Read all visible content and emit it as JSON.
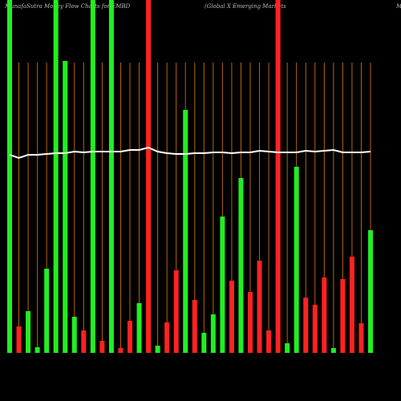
{
  "chart_data": {
    "type": "bar",
    "title": "MunafaSutra  Money Flow  Charts for EMBD",
    "subtitle": "(Global X  Emerging Markets",
    "title_right": "M",
    "categories": [
      null,
      null,
      null,
      null,
      null,
      null,
      null,
      null,
      null,
      null,
      null,
      null,
      null,
      null,
      null,
      null,
      null,
      null,
      null,
      null,
      null,
      null,
      null,
      null,
      null,
      null,
      null,
      null,
      null,
      null,
      null,
      null,
      null,
      null,
      null,
      null,
      null,
      null,
      null,
      null
    ],
    "values": [
      440,
      33,
      52,
      7,
      105,
      440,
      364,
      45,
      28,
      440,
      15,
      440,
      6,
      40,
      62,
      440,
      9,
      38,
      103,
      303,
      66,
      25,
      48,
      170,
      90,
      218,
      76,
      115,
      28,
      440,
      12,
      232,
      69,
      60,
      94,
      6,
      92,
      120,
      37,
      153
    ],
    "colors": [
      "#22ee22",
      "#ff2222",
      "#22ee22",
      "#22ee22",
      "#22ee22",
      "#22ee22",
      "#22ee22",
      "#22ee22",
      "#ff2222",
      "#22ee22",
      "#ff2222",
      "#22ee22",
      "#ff2222",
      "#ff2222",
      "#22ee22",
      "#ff2222",
      "#22ee22",
      "#ff2222",
      "#ff2222",
      "#22ee22",
      "#ff2222",
      "#22ee22",
      "#22ee22",
      "#22ee22",
      "#ff2222",
      "#22ee22",
      "#ff2222",
      "#ff2222",
      "#ff2222",
      "#ff2222",
      "#22ee22",
      "#22ee22",
      "#ff2222",
      "#ff2222",
      "#ff2222",
      "#22ee22",
      "#ff2222",
      "#ff2222",
      "#ff2222",
      "#22ee22"
    ],
    "ylim": [
      0,
      440
    ],
    "grid_color": "#b8640a",
    "line": {
      "color": "#ffffff",
      "ylim": [
        0,
        440
      ],
      "values": [
        247,
        243,
        247,
        247,
        248,
        249,
        249,
        251,
        250,
        251,
        251,
        251,
        251,
        253,
        253,
        256,
        251,
        249,
        248,
        248,
        249,
        249,
        250,
        250,
        249,
        250,
        250,
        252,
        251,
        250,
        250,
        250,
        252,
        251,
        252,
        253,
        250,
        250,
        250,
        251
      ]
    }
  }
}
